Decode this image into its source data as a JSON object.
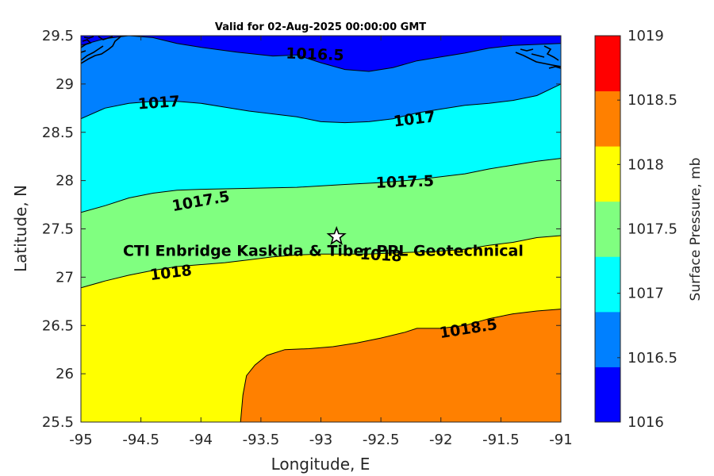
{
  "chart_data": {
    "type": "contour",
    "title": "Valid for 02-Aug-2025 00:00:00 GMT",
    "xlabel": "Longitude, E",
    "ylabel": "Latitude, N",
    "xlim": [
      -95,
      -91
    ],
    "ylim": [
      25.5,
      29.5
    ],
    "x_ticks": [
      "-95",
      "-94.5",
      "-94",
      "-93.5",
      "-93",
      "-92.5",
      "-92",
      "-91.5",
      "-91"
    ],
    "y_ticks": [
      "25.5",
      "26",
      "26.5",
      "27",
      "27.5",
      "28",
      "28.5",
      "29",
      "29.5"
    ],
    "levels": [
      1016,
      1016.5,
      1017,
      1017.5,
      1018,
      1018.5,
      1019
    ],
    "level_colors": [
      "#0000ff",
      "#0080ff",
      "#00ffff",
      "#80ff80",
      "#ffff00",
      "#ff8000",
      "#ff0000"
    ],
    "isobars": [
      {
        "value": 1016.5,
        "label": "1016.5",
        "points": [
          [
            -95,
            29.4
          ],
          [
            -94.8,
            29.47
          ],
          [
            -94.6,
            29.5
          ],
          [
            -94.4,
            29.48
          ],
          [
            -94.2,
            29.42
          ],
          [
            -94,
            29.38
          ],
          [
            -93.7,
            29.33
          ],
          [
            -93.4,
            29.29
          ],
          [
            -93.2,
            29.3
          ],
          [
            -93,
            29.22
          ],
          [
            -92.8,
            29.15
          ],
          [
            -92.6,
            29.13
          ],
          [
            -92.4,
            29.17
          ],
          [
            -92.2,
            29.24
          ],
          [
            -92,
            29.28
          ],
          [
            -91.8,
            29.32
          ],
          [
            -91.6,
            29.37
          ],
          [
            -91.4,
            29.4
          ],
          [
            -91.2,
            29.41
          ],
          [
            -91,
            29.42
          ]
        ]
      },
      {
        "value": 1017,
        "label": "1017",
        "points": [
          [
            -95,
            28.64
          ],
          [
            -94.8,
            28.75
          ],
          [
            -94.6,
            28.8
          ],
          [
            -94.4,
            28.82
          ],
          [
            -94.2,
            28.82
          ],
          [
            -94,
            28.8
          ],
          [
            -93.8,
            28.76
          ],
          [
            -93.6,
            28.72
          ],
          [
            -93.4,
            28.69
          ],
          [
            -93.2,
            28.66
          ],
          [
            -93,
            28.61
          ],
          [
            -92.8,
            28.6
          ],
          [
            -92.6,
            28.61
          ],
          [
            -92.4,
            28.64
          ],
          [
            -92.2,
            28.7
          ],
          [
            -92,
            28.74
          ],
          [
            -91.8,
            28.78
          ],
          [
            -91.6,
            28.8
          ],
          [
            -91.4,
            28.83
          ],
          [
            -91.2,
            28.88
          ],
          [
            -91,
            29
          ]
        ]
      },
      {
        "value": 1017.5,
        "label": "1017.5",
        "points": [
          [
            -95,
            27.67
          ],
          [
            -94.8,
            27.74
          ],
          [
            -94.6,
            27.82
          ],
          [
            -94.4,
            27.87
          ],
          [
            -94.2,
            27.9
          ],
          [
            -94,
            27.91
          ],
          [
            -93.6,
            27.92
          ],
          [
            -93.2,
            27.93
          ],
          [
            -92.8,
            27.96
          ],
          [
            -92.5,
            27.98
          ],
          [
            -92.2,
            28.01
          ],
          [
            -92,
            28.04
          ],
          [
            -91.8,
            28.07
          ],
          [
            -91.6,
            28.12
          ],
          [
            -91.4,
            28.16
          ],
          [
            -91.2,
            28.2
          ],
          [
            -91,
            28.23
          ]
        ]
      },
      {
        "value": 1018,
        "label": "1018",
        "points": [
          [
            -95,
            26.89
          ],
          [
            -94.8,
            26.96
          ],
          [
            -94.6,
            27.02
          ],
          [
            -94.4,
            27.07
          ],
          [
            -94.2,
            27.11
          ],
          [
            -94,
            27.13
          ],
          [
            -93.8,
            27.15
          ],
          [
            -93.6,
            27.18
          ],
          [
            -93.4,
            27.21
          ],
          [
            -93.2,
            27.23
          ],
          [
            -93,
            27.24
          ],
          [
            -92.8,
            27.24
          ],
          [
            -92.6,
            27.24
          ],
          [
            -92.4,
            27.25
          ],
          [
            -92.2,
            27.26
          ],
          [
            -92,
            27.27
          ],
          [
            -91.8,
            27.29
          ],
          [
            -91.6,
            27.33
          ],
          [
            -91.4,
            27.36
          ],
          [
            -91.2,
            27.41
          ],
          [
            -91,
            27.43
          ]
        ]
      },
      {
        "value": 1018.5,
        "label": "1018.5",
        "points": [
          [
            -93.67,
            25.5
          ],
          [
            -93.65,
            25.78
          ],
          [
            -93.62,
            25.98
          ],
          [
            -93.55,
            26.09
          ],
          [
            -93.45,
            26.19
          ],
          [
            -93.3,
            26.25
          ],
          [
            -93.1,
            26.26
          ],
          [
            -92.9,
            26.28
          ],
          [
            -92.7,
            26.32
          ],
          [
            -92.5,
            26.37
          ],
          [
            -92.3,
            26.43
          ],
          [
            -92.2,
            26.47
          ],
          [
            -92,
            26.47
          ],
          [
            -91.8,
            26.5
          ],
          [
            -91.6,
            26.57
          ],
          [
            -91.4,
            26.62
          ],
          [
            -91.2,
            26.65
          ],
          [
            -91,
            26.67
          ]
        ]
      }
    ],
    "contour_labels": [
      {
        "text": "1016.5",
        "lon": -93.05,
        "lat": 29.3,
        "angle": 2
      },
      {
        "text": "1017",
        "lon": -94.35,
        "lat": 28.8,
        "angle": -4
      },
      {
        "text": "1017",
        "lon": -92.22,
        "lat": 28.63,
        "angle": -7
      },
      {
        "text": "1017.5",
        "lon": -94.0,
        "lat": 27.78,
        "angle": -10
      },
      {
        "text": "1017.5",
        "lon": -92.3,
        "lat": 27.98,
        "angle": -2
      },
      {
        "text": "1018",
        "lon": -94.25,
        "lat": 27.04,
        "angle": -7
      },
      {
        "text": "1018",
        "lon": -92.5,
        "lat": 27.22,
        "angle": 3
      },
      {
        "text": "1018.5",
        "lon": -91.77,
        "lat": 26.46,
        "angle": -9
      }
    ],
    "site_marker": {
      "lon": -92.87,
      "lat": 27.42,
      "symbol": "star"
    },
    "annotation": {
      "text": "CTI Enbridge  Kaskida & Tiber PPL Geotechnical",
      "lon": -94.65,
      "lat": 27.28
    },
    "colorbar": {
      "label": "Surface Pressure, mb",
      "ticks": [
        "1016",
        "1016.5",
        "1017",
        "1017.5",
        "1018",
        "1018.5",
        "1019"
      ]
    },
    "coastline": "black outline of land at top-left and top-right corners",
    "grid": false
  }
}
